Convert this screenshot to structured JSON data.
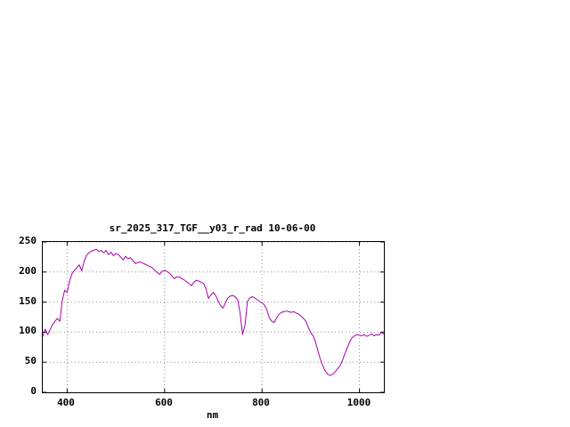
{
  "page": {
    "background": "#ffffff"
  },
  "chart_data": {
    "type": "line",
    "title": "sr_2025_317_TGF__y03_r_rad 10-06-00",
    "xlabel": "nm",
    "ylabel": "",
    "xlim": [
      350,
      1050
    ],
    "ylim": [
      0,
      250
    ],
    "x_ticks": [
      400,
      600,
      800,
      1000
    ],
    "y_ticks": [
      0,
      50,
      100,
      150,
      200,
      250
    ],
    "grid": true,
    "legend": "none",
    "line_color": "#a800a8",
    "series": [
      {
        "name": "sr_2025_317_TGF__y03_r_rad",
        "x": [
          350,
          355,
          360,
          365,
          370,
          375,
          380,
          385,
          390,
          395,
          400,
          405,
          410,
          415,
          420,
          425,
          430,
          435,
          440,
          445,
          450,
          455,
          460,
          465,
          470,
          475,
          480,
          485,
          490,
          495,
          500,
          505,
          510,
          515,
          520,
          525,
          530,
          535,
          540,
          545,
          550,
          555,
          560,
          565,
          570,
          575,
          580,
          585,
          590,
          595,
          600,
          605,
          610,
          615,
          620,
          625,
          630,
          635,
          640,
          645,
          650,
          655,
          660,
          665,
          670,
          675,
          680,
          685,
          690,
          695,
          700,
          705,
          710,
          715,
          720,
          725,
          730,
          735,
          740,
          745,
          750,
          755,
          760,
          765,
          770,
          775,
          780,
          785,
          790,
          795,
          800,
          805,
          810,
          815,
          820,
          825,
          830,
          835,
          840,
          845,
          850,
          855,
          860,
          865,
          870,
          875,
          880,
          885,
          890,
          895,
          900,
          905,
          910,
          915,
          920,
          925,
          930,
          935,
          940,
          945,
          950,
          955,
          960,
          965,
          970,
          975,
          980,
          985,
          990,
          995,
          1000,
          1005,
          1010,
          1015,
          1020,
          1025,
          1030,
          1035,
          1040,
          1045,
          1050
        ],
        "y": [
          93,
          105,
          96,
          104,
          112,
          118,
          123,
          118,
          152,
          170,
          166,
          185,
          197,
          203,
          207,
          212,
          202,
          218,
          228,
          232,
          235,
          236,
          238,
          234,
          236,
          232,
          236,
          229,
          233,
          227,
          231,
          229,
          225,
          220,
          226,
          222,
          224,
          219,
          214,
          216,
          217,
          215,
          213,
          211,
          209,
          207,
          203,
          199,
          196,
          201,
          203,
          201,
          198,
          194,
          189,
          192,
          192,
          189,
          187,
          184,
          181,
          177,
          183,
          186,
          185,
          183,
          181,
          172,
          156,
          162,
          166,
          161,
          152,
          144,
          140,
          149,
          157,
          160,
          161,
          159,
          154,
          132,
          96,
          112,
          151,
          157,
          159,
          157,
          154,
          151,
          149,
          145,
          137,
          124,
          118,
          116,
          124,
          130,
          133,
          134,
          135,
          134,
          133,
          134,
          132,
          130,
          127,
          123,
          118,
          108,
          99,
          94,
          83,
          68,
          54,
          44,
          35,
          30,
          28,
          30,
          34,
          39,
          44,
          53,
          64,
          74,
          84,
          91,
          94,
          96,
          95,
          94,
          96,
          93,
          95,
          97,
          94,
          96,
          95,
          100,
          97
        ]
      }
    ]
  }
}
